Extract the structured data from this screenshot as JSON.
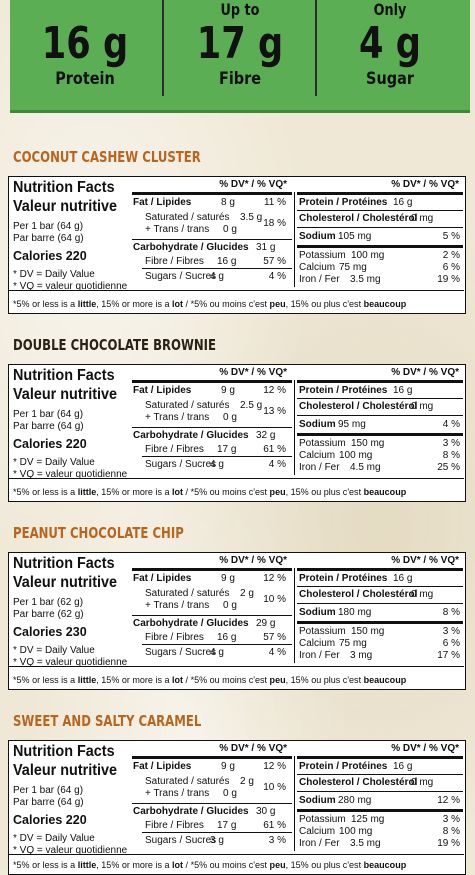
{
  "banner": [
    {
      "pre": "",
      "value": "16 g",
      "label": "Protein"
    },
    {
      "pre": "Up to",
      "value": "17 g",
      "label": "Fibre"
    },
    {
      "pre": "Only",
      "value": "4 g",
      "label": "Sugar"
    }
  ],
  "common": {
    "nf_en": "Nutrition Facts",
    "nf_fr": "Valeur nutritive",
    "dv_header": "% DV* / % VQ*",
    "dv_en": "* DV = Daily Value",
    "dv_fr": "* VQ = valeur quotidienne",
    "fat_label": "Fat / Lipides",
    "sat_label": "Saturated / saturés",
    "trans_label": "+ Trans / trans",
    "carb_label": "Carbohydrate / Glucides",
    "fibre_label": "Fibre / Fibres",
    "sugars_label": "Sugars / Sucres",
    "protein_label": "Protein / Protéines",
    "chol_label": "Cholesterol / Cholestérol",
    "sodium_label": "Sodium",
    "potassium_label": "Potassium",
    "calcium_label": "Calcium",
    "iron_label": "Iron / Fer",
    "footnote_a": "*5% or less is a ",
    "footnote_little": "little",
    "footnote_b": ", 15% or more is a ",
    "footnote_lot": "lot",
    "footnote_c": " / *5% ou moins c'est ",
    "footnote_peu": "peu",
    "footnote_d": ", 15% ou plus c'est ",
    "footnote_beaucoup": "beaucoup"
  },
  "products": [
    {
      "title": "COCONUT CASHEW CLUSTER",
      "serving_en": "Per 1 bar (64 g)",
      "serving_fr": "Par barre (64 g)",
      "calories": "Calories 220",
      "fat": "8 g",
      "fat_dv": "11 %",
      "sat": "3.5 g",
      "trans": "0 g",
      "sat_dv": "18 %",
      "carb": "31 g",
      "fibre": "16 g",
      "fibre_dv": "57 %",
      "sugars": "4 g",
      "sugars_dv": "4 %",
      "protein": "16 g",
      "chol": "0 mg",
      "sodium": "105 mg",
      "sodium_dv": "5 %",
      "potassium": "100 mg",
      "potassium_dv": "2 %",
      "calcium": "75 mg",
      "calcium_dv": "6 %",
      "iron": "3.5 mg",
      "iron_dv": "19 %"
    },
    {
      "title": "DOUBLE CHOCOLATE BROWNIE",
      "serving_en": "Per 1 bar (64 g)",
      "serving_fr": "Par barre (64 g)",
      "calories": "Calories 220",
      "fat": "9 g",
      "fat_dv": "12 %",
      "sat": "2.5 g",
      "trans": "0 g",
      "sat_dv": "13 %",
      "carb": "32 g",
      "fibre": "17 g",
      "fibre_dv": "61 %",
      "sugars": "4 g",
      "sugars_dv": "4 %",
      "protein": "16 g",
      "chol": "0 mg",
      "sodium": "95 mg",
      "sodium_dv": "4 %",
      "potassium": "150 mg",
      "potassium_dv": "3 %",
      "calcium": "100 mg",
      "calcium_dv": "8 %",
      "iron": "4.5 mg",
      "iron_dv": "25 %"
    },
    {
      "title": "PEANUT CHOCOLATE CHIP",
      "serving_en": "Per 1 bar (62 g)",
      "serving_fr": "Par barre (62 g)",
      "calories": "Calories 230",
      "fat": "9 g",
      "fat_dv": "12 %",
      "sat": "2 g",
      "trans": "0 g",
      "sat_dv": "10 %",
      "carb": "29 g",
      "fibre": "16 g",
      "fibre_dv": "57 %",
      "sugars": "4 g",
      "sugars_dv": "4 %",
      "protein": "16 g",
      "chol": "0 mg",
      "sodium": "180 mg",
      "sodium_dv": "8 %",
      "potassium": "150 mg",
      "potassium_dv": "3 %",
      "calcium": "75 mg",
      "calcium_dv": "6 %",
      "iron": "3 mg",
      "iron_dv": "17 %"
    },
    {
      "title": "SWEET AND SALTY CARAMEL",
      "serving_en": "Per 1 bar (64 g)",
      "serving_fr": "Par barre (64 g)",
      "calories": "Calories 220",
      "fat": "9 g",
      "fat_dv": "12 %",
      "sat": "2 g",
      "trans": "0 g",
      "sat_dv": "10 %",
      "carb": "30 g",
      "fibre": "17 g",
      "fibre_dv": "61 %",
      "sugars": "3 g",
      "sugars_dv": "3 %",
      "protein": "16 g",
      "chol": "0 mg",
      "sodium": "280 mg",
      "sodium_dv": "12 %",
      "potassium": "125 mg",
      "potassium_dv": "3 %",
      "calcium": "100 mg",
      "calcium_dv": "8 %",
      "iron": "3.5 mg",
      "iron_dv": "19 %"
    }
  ]
}
